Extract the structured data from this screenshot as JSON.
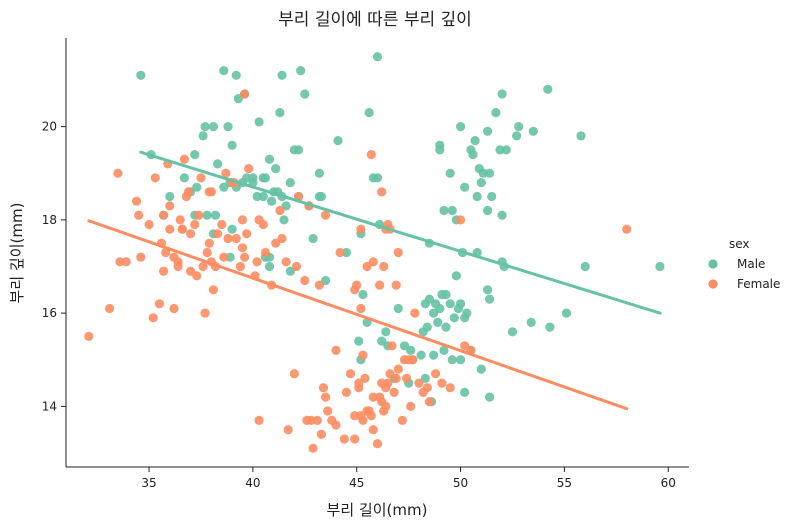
{
  "chart_data": {
    "type": "scatter",
    "title": "부리 길이에 따른 부리 깊이",
    "xlabel": "부리 길이(mm)",
    "ylabel": "부리 깊이(mm)",
    "xlim": [
      31,
      61
    ],
    "ylim": [
      12.7,
      21.9
    ],
    "xticks": [
      35,
      40,
      45,
      50,
      55,
      60
    ],
    "yticks": [
      14,
      16,
      18,
      20
    ],
    "grid": false,
    "legend": {
      "title": "sex",
      "position": "right"
    },
    "series": [
      {
        "name": "Male",
        "color": "#66c2a5",
        "points": [
          [
            34.6,
            21.1
          ],
          [
            35.1,
            19.4
          ],
          [
            37.2,
            19.4
          ],
          [
            37.6,
            19.8
          ],
          [
            37.7,
            20.0
          ],
          [
            38.1,
            20.0
          ],
          [
            38.6,
            21.2
          ],
          [
            39.2,
            21.1
          ],
          [
            39.3,
            20.6
          ],
          [
            39.6,
            20.7
          ],
          [
            40.3,
            20.1
          ],
          [
            40.8,
            19.3
          ],
          [
            41.4,
            21.1
          ],
          [
            42.3,
            21.2
          ],
          [
            42.5,
            20.7
          ],
          [
            42.2,
            19.5
          ],
          [
            41.3,
            20.3
          ],
          [
            38.8,
            20.0
          ],
          [
            39.0,
            19.6
          ],
          [
            40.0,
            18.9
          ],
          [
            40.6,
            18.9
          ],
          [
            41.1,
            19.1
          ],
          [
            41.4,
            18.5
          ],
          [
            42.0,
            19.5
          ],
          [
            43.2,
            19.0
          ],
          [
            43.2,
            18.5
          ],
          [
            44.1,
            19.7
          ],
          [
            45.8,
            18.9
          ],
          [
            45.6,
            20.3
          ],
          [
            46.0,
            21.5
          ],
          [
            37.2,
            18.1
          ],
          [
            37.8,
            18.1
          ],
          [
            38.2,
            18.1
          ],
          [
            38.6,
            18.7
          ],
          [
            39.2,
            18.7
          ],
          [
            39.7,
            18.9
          ],
          [
            40.2,
            18.5
          ],
          [
            41.5,
            18.0
          ],
          [
            42.9,
            17.6
          ],
          [
            40.9,
            18.4
          ],
          [
            40.5,
            18.9
          ],
          [
            41.0,
            18.6
          ],
          [
            41.6,
            18.3
          ],
          [
            42.7,
            18.3
          ],
          [
            43.3,
            18.5
          ],
          [
            36.0,
            18.5
          ],
          [
            37.0,
            18.6
          ],
          [
            38.1,
            17.7
          ],
          [
            39.0,
            17.8
          ],
          [
            40.6,
            17.2
          ],
          [
            40.8,
            17.0
          ],
          [
            41.2,
            18.6
          ],
          [
            35.7,
            18.1
          ],
          [
            36.7,
            18.9
          ],
          [
            37.3,
            18.7
          ],
          [
            38.3,
            19.2
          ],
          [
            38.9,
            18.8
          ],
          [
            39.5,
            18.8
          ],
          [
            40.0,
            18.8
          ],
          [
            40.5,
            18.5
          ],
          [
            41.8,
            18.8
          ],
          [
            42.2,
            18.5
          ],
          [
            46.0,
            18.9
          ],
          [
            44.5,
            17.3
          ],
          [
            45.2,
            17.7
          ],
          [
            48.5,
            17.5
          ],
          [
            49.0,
            19.6
          ],
          [
            49.0,
            19.5
          ],
          [
            49.2,
            18.2
          ],
          [
            49.5,
            19.0
          ],
          [
            50.0,
            20.0
          ],
          [
            50.5,
            19.5
          ],
          [
            50.9,
            19.1
          ],
          [
            51.0,
            18.8
          ],
          [
            51.3,
            19.9
          ],
          [
            51.4,
            19.0
          ],
          [
            51.7,
            20.3
          ],
          [
            52.0,
            20.7
          ],
          [
            52.2,
            19.5
          ],
          [
            52.8,
            20.0
          ],
          [
            53.5,
            19.9
          ],
          [
            54.2,
            20.8
          ],
          [
            55.8,
            19.8
          ],
          [
            49.6,
            18.2
          ],
          [
            50.6,
            19.4
          ],
          [
            51.1,
            19.0
          ],
          [
            51.5,
            18.5
          ],
          [
            52.0,
            18.1
          ],
          [
            50.8,
            18.5
          ],
          [
            49.8,
            18.0
          ],
          [
            52.1,
            17.0
          ],
          [
            56.0,
            17.0
          ],
          [
            59.6,
            17.0
          ],
          [
            52.7,
            19.8
          ],
          [
            50.7,
            19.7
          ],
          [
            51.3,
            18.2
          ],
          [
            50.2,
            18.7
          ],
          [
            51.9,
            19.5
          ],
          [
            52.0,
            17.1
          ],
          [
            53.4,
            15.8
          ],
          [
            54.3,
            15.7
          ],
          [
            55.1,
            16.0
          ],
          [
            52.5,
            15.6
          ],
          [
            51.3,
            16.5
          ],
          [
            51.4,
            16.3
          ],
          [
            50.8,
            17.3
          ],
          [
            50.1,
            17.3
          ],
          [
            49.5,
            16.2
          ],
          [
            49.8,
            16.8
          ],
          [
            48.7,
            16.0
          ],
          [
            48.5,
            16.3
          ],
          [
            48.8,
            16.2
          ],
          [
            49.1,
            16.4
          ],
          [
            50.0,
            16.2
          ],
          [
            50.2,
            15.9
          ],
          [
            49.7,
            15.9
          ],
          [
            49.3,
            15.7
          ],
          [
            48.4,
            15.7
          ],
          [
            47.6,
            15.2
          ],
          [
            47.3,
            15.3
          ],
          [
            46.4,
            15.6
          ],
          [
            45.5,
            15.8
          ],
          [
            45.2,
            15.0
          ],
          [
            46.2,
            15.4
          ],
          [
            46.8,
            14.6
          ],
          [
            47.5,
            14.5
          ],
          [
            48.1,
            15.1
          ],
          [
            48.7,
            15.1
          ],
          [
            49.2,
            15.2
          ],
          [
            49.6,
            15.0
          ],
          [
            50.5,
            15.2
          ],
          [
            50.0,
            15.0
          ],
          [
            48.6,
            14.1
          ],
          [
            50.2,
            14.3
          ],
          [
            51.0,
            14.8
          ],
          [
            51.4,
            14.2
          ],
          [
            45.1,
            15.4
          ],
          [
            47.0,
            16.1
          ],
          [
            45.3,
            16.4
          ],
          [
            43.5,
            16.7
          ],
          [
            41.8,
            16.9
          ],
          [
            40.8,
            17.2
          ],
          [
            38.9,
            17.2
          ],
          [
            48.2,
            15.6
          ],
          [
            46.5,
            15.3
          ],
          [
            47.7,
            15.0
          ],
          [
            49.9,
            16.1
          ],
          [
            48.9,
            15.8
          ],
          [
            50.3,
            16.0
          ],
          [
            48.3,
            14.6
          ],
          [
            49.0,
            16.1
          ],
          [
            46.1,
            17.9
          ],
          [
            49.3,
            16.4
          ],
          [
            48.3,
            16.2
          ]
        ],
        "fit": {
          "x": [
            34.6,
            59.6
          ],
          "y": [
            19.45,
            16.0
          ]
        }
      },
      {
        "name": "Female",
        "color": "#fc8d62",
        "points": [
          [
            32.1,
            15.5
          ],
          [
            33.1,
            16.1
          ],
          [
            33.5,
            19.0
          ],
          [
            33.9,
            17.1
          ],
          [
            34.4,
            18.4
          ],
          [
            34.6,
            17.2
          ],
          [
            35.0,
            17.9
          ],
          [
            35.2,
            15.9
          ],
          [
            35.3,
            18.9
          ],
          [
            35.5,
            16.2
          ],
          [
            35.6,
            17.5
          ],
          [
            35.7,
            16.9
          ],
          [
            35.9,
            19.2
          ],
          [
            36.0,
            17.8
          ],
          [
            36.2,
            17.2
          ],
          [
            36.2,
            16.1
          ],
          [
            36.4,
            17.0
          ],
          [
            36.5,
            18.0
          ],
          [
            36.6,
            17.8
          ],
          [
            36.7,
            19.3
          ],
          [
            36.8,
            18.5
          ],
          [
            36.9,
            18.6
          ],
          [
            37.0,
            16.9
          ],
          [
            37.3,
            16.8
          ],
          [
            37.5,
            18.9
          ],
          [
            37.6,
            17.0
          ],
          [
            37.7,
            16.0
          ],
          [
            37.8,
            17.3
          ],
          [
            37.9,
            18.6
          ],
          [
            38.1,
            16.5
          ],
          [
            38.2,
            17.0
          ],
          [
            38.3,
            17.7
          ],
          [
            38.5,
            17.9
          ],
          [
            38.6,
            17.2
          ],
          [
            38.7,
            19.0
          ],
          [
            38.8,
            17.6
          ],
          [
            39.0,
            18.8
          ],
          [
            39.2,
            17.6
          ],
          [
            39.5,
            17.4
          ],
          [
            39.6,
            17.2
          ],
          [
            39.7,
            17.7
          ],
          [
            39.8,
            19.1
          ],
          [
            40.2,
            17.1
          ],
          [
            40.3,
            18.0
          ],
          [
            40.6,
            17.3
          ],
          [
            40.9,
            16.6
          ],
          [
            41.1,
            17.5
          ],
          [
            41.4,
            17.6
          ],
          [
            41.6,
            17.1
          ],
          [
            42.2,
            18.5
          ],
          [
            42.7,
            18.3
          ],
          [
            36.4,
            17.1
          ],
          [
            36.6,
            17.8
          ],
          [
            37.2,
            17.9
          ],
          [
            35.8,
            17.3
          ],
          [
            39.1,
            18.8
          ],
          [
            39.6,
            20.7
          ],
          [
            36.0,
            18.3
          ],
          [
            37.4,
            18.1
          ],
          [
            34.5,
            18.1
          ],
          [
            35.7,
            18.1
          ],
          [
            37.0,
            17.7
          ],
          [
            38.0,
            18.6
          ],
          [
            39.5,
            18.0
          ],
          [
            40.5,
            17.9
          ],
          [
            41.3,
            18.2
          ],
          [
            43.5,
            18.1
          ],
          [
            45.2,
            17.8
          ],
          [
            45.5,
            17.0
          ],
          [
            45.7,
            19.4
          ],
          [
            46.2,
            18.6
          ],
          [
            46.4,
            17.8
          ],
          [
            46.6,
            17.8
          ],
          [
            46.9,
            16.6
          ],
          [
            47.0,
            17.3
          ],
          [
            45.0,
            16.6
          ],
          [
            45.8,
            17.1
          ],
          [
            46.5,
            17.9
          ],
          [
            42.5,
            16.7
          ],
          [
            44.2,
            17.3
          ],
          [
            43.2,
            16.6
          ],
          [
            42.0,
            14.7
          ],
          [
            42.8,
            13.7
          ],
          [
            42.9,
            13.1
          ],
          [
            43.3,
            13.4
          ],
          [
            43.4,
            14.4
          ],
          [
            43.5,
            14.2
          ],
          [
            43.8,
            13.7
          ],
          [
            44.0,
            13.6
          ],
          [
            44.4,
            13.3
          ],
          [
            44.5,
            14.3
          ],
          [
            44.9,
            13.8
          ],
          [
            45.1,
            14.5
          ],
          [
            45.2,
            13.8
          ],
          [
            45.4,
            14.6
          ],
          [
            45.5,
            13.9
          ],
          [
            45.6,
            13.9
          ],
          [
            45.7,
            13.8
          ],
          [
            45.8,
            14.2
          ],
          [
            46.0,
            13.2
          ],
          [
            46.1,
            14.2
          ],
          [
            46.2,
            14.5
          ],
          [
            46.4,
            14.0
          ],
          [
            46.5,
            14.5
          ],
          [
            46.6,
            14.7
          ],
          [
            46.8,
            14.3
          ],
          [
            46.9,
            14.6
          ],
          [
            47.2,
            13.7
          ],
          [
            47.4,
            14.6
          ],
          [
            47.7,
            15.0
          ],
          [
            48.0,
            14.5
          ],
          [
            48.2,
            14.3
          ],
          [
            48.4,
            14.4
          ],
          [
            49.1,
            14.5
          ],
          [
            42.6,
            13.7
          ],
          [
            44.9,
            13.3
          ],
          [
            45.3,
            13.7
          ],
          [
            46.2,
            14.1
          ],
          [
            46.7,
            15.3
          ],
          [
            47.3,
            15.0
          ],
          [
            47.5,
            15.0
          ],
          [
            50.5,
            15.2
          ],
          [
            41.7,
            13.5
          ],
          [
            43.6,
            13.9
          ],
          [
            45.1,
            14.4
          ],
          [
            47.0,
            14.8
          ],
          [
            48.5,
            14.1
          ],
          [
            50.2,
            15.3
          ],
          [
            44.7,
            14.7
          ],
          [
            45.8,
            13.5
          ],
          [
            40.3,
            13.7
          ],
          [
            43.1,
            13.7
          ],
          [
            46.4,
            14.4
          ],
          [
            49.5,
            14.4
          ],
          [
            48.8,
            14.7
          ],
          [
            44.0,
            15.2
          ],
          [
            46.3,
            13.9
          ],
          [
            47.6,
            14.0
          ],
          [
            45.3,
            15.1
          ],
          [
            58.0,
            17.8
          ],
          [
            33.6,
            17.1
          ],
          [
            37.9,
            17.5
          ],
          [
            42.1,
            17.0
          ],
          [
            44.9,
            16.5
          ],
          [
            46.1,
            16.6
          ],
          [
            47.8,
            16.0
          ],
          [
            38.0,
            17.1
          ],
          [
            39.4,
            17.0
          ],
          [
            40.1,
            16.8
          ],
          [
            45.2,
            16.1
          ],
          [
            46.3,
            17.0
          ],
          [
            50.0,
            18.0
          ]
        ],
        "fit": {
          "x": [
            32.1,
            58.0
          ],
          "y": [
            17.98,
            13.95
          ]
        }
      }
    ]
  }
}
